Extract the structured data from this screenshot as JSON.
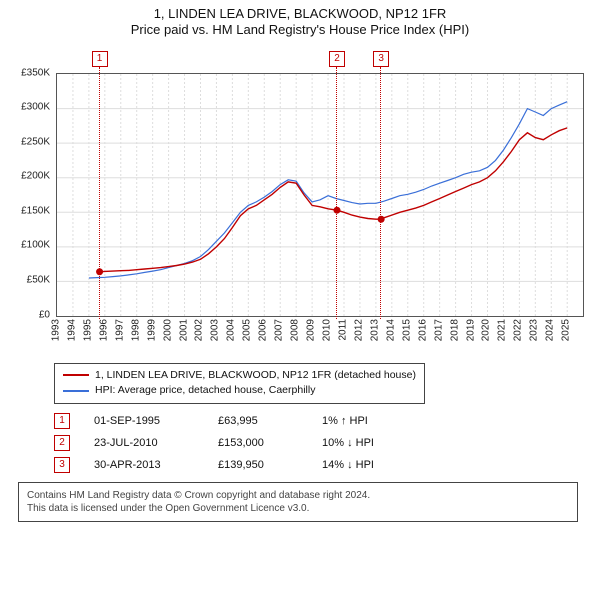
{
  "title_line1": "1, LINDEN LEA DRIVE, BLACKWOOD, NP12 1FR",
  "title_line2": "Price paid vs. HM Land Registry's House Price Index (HPI)",
  "chart": {
    "type": "line",
    "background_color": "#ffffff",
    "grid_color": "#dddddd",
    "border_color": "#555555",
    "xlim": [
      1993,
      2025.99
    ],
    "ylim": [
      0,
      350000
    ],
    "ytick_step": 50000,
    "yticks": [
      "£0",
      "£50K",
      "£100K",
      "£150K",
      "£200K",
      "£250K",
      "£300K",
      "£350K"
    ],
    "xticks": [
      "1993",
      "1994",
      "1995",
      "1996",
      "1997",
      "1998",
      "1999",
      "2000",
      "2001",
      "2002",
      "2003",
      "2004",
      "2005",
      "2006",
      "2007",
      "2008",
      "2009",
      "2010",
      "2011",
      "2012",
      "2013",
      "2014",
      "2015",
      "2016",
      "2017",
      "2018",
      "2019",
      "2020",
      "2021",
      "2022",
      "2023",
      "2024",
      "2025"
    ],
    "label_fontsize": 10,
    "series": [
      {
        "name": "hpi",
        "color": "#3a6fd8",
        "width": 1.2,
        "points": [
          [
            1995.0,
            55000
          ],
          [
            1995.5,
            55500
          ],
          [
            1996.0,
            56000
          ],
          [
            1996.5,
            57000
          ],
          [
            1997.0,
            58000
          ],
          [
            1997.5,
            59500
          ],
          [
            1998.0,
            61000
          ],
          [
            1998.5,
            63000
          ],
          [
            1999.0,
            65000
          ],
          [
            1999.5,
            67000
          ],
          [
            2000.0,
            70000
          ],
          [
            2000.5,
            73000
          ],
          [
            2001.0,
            76000
          ],
          [
            2001.5,
            80000
          ],
          [
            2002.0,
            86000
          ],
          [
            2002.5,
            96000
          ],
          [
            2003.0,
            108000
          ],
          [
            2003.5,
            120000
          ],
          [
            2004.0,
            135000
          ],
          [
            2004.5,
            150000
          ],
          [
            2005.0,
            160000
          ],
          [
            2005.5,
            165000
          ],
          [
            2006.0,
            172000
          ],
          [
            2006.5,
            180000
          ],
          [
            2007.0,
            190000
          ],
          [
            2007.5,
            197000
          ],
          [
            2008.0,
            195000
          ],
          [
            2008.5,
            178000
          ],
          [
            2009.0,
            165000
          ],
          [
            2009.5,
            168000
          ],
          [
            2010.0,
            174000
          ],
          [
            2010.5,
            170000
          ],
          [
            2011.0,
            167000
          ],
          [
            2011.5,
            164000
          ],
          [
            2012.0,
            162000
          ],
          [
            2012.5,
            163000
          ],
          [
            2013.0,
            163000
          ],
          [
            2013.5,
            166000
          ],
          [
            2014.0,
            170000
          ],
          [
            2014.5,
            174000
          ],
          [
            2015.0,
            176000
          ],
          [
            2015.5,
            179000
          ],
          [
            2016.0,
            183000
          ],
          [
            2016.5,
            188000
          ],
          [
            2017.0,
            192000
          ],
          [
            2017.5,
            196000
          ],
          [
            2018.0,
            200000
          ],
          [
            2018.5,
            205000
          ],
          [
            2019.0,
            208000
          ],
          [
            2019.5,
            210000
          ],
          [
            2020.0,
            215000
          ],
          [
            2020.5,
            225000
          ],
          [
            2021.0,
            240000
          ],
          [
            2021.5,
            258000
          ],
          [
            2022.0,
            278000
          ],
          [
            2022.5,
            300000
          ],
          [
            2023.0,
            295000
          ],
          [
            2023.5,
            290000
          ],
          [
            2024.0,
            300000
          ],
          [
            2024.5,
            305000
          ],
          [
            2025.0,
            310000
          ]
        ]
      },
      {
        "name": "price_paid",
        "color": "#c00000",
        "width": 1.4,
        "points": [
          [
            1995.67,
            63995
          ],
          [
            1996.0,
            64500
          ],
          [
            1996.5,
            65000
          ],
          [
            1997.0,
            65500
          ],
          [
            1997.5,
            66000
          ],
          [
            1998.0,
            67000
          ],
          [
            1998.5,
            68000
          ],
          [
            1999.0,
            69000
          ],
          [
            1999.5,
            70000
          ],
          [
            2000.0,
            71500
          ],
          [
            2000.5,
            73000
          ],
          [
            2001.0,
            75000
          ],
          [
            2001.5,
            78000
          ],
          [
            2002.0,
            82000
          ],
          [
            2002.5,
            90000
          ],
          [
            2003.0,
            100000
          ],
          [
            2003.5,
            112000
          ],
          [
            2004.0,
            128000
          ],
          [
            2004.5,
            145000
          ],
          [
            2005.0,
            155000
          ],
          [
            2005.5,
            160000
          ],
          [
            2006.0,
            168000
          ],
          [
            2006.5,
            176000
          ],
          [
            2007.0,
            186000
          ],
          [
            2007.5,
            194000
          ],
          [
            2008.0,
            192000
          ],
          [
            2008.5,
            175000
          ],
          [
            2009.0,
            160000
          ],
          [
            2009.5,
            158000
          ],
          [
            2010.0,
            155000
          ],
          [
            2010.56,
            153000
          ],
          [
            2011.0,
            150000
          ],
          [
            2011.5,
            146000
          ],
          [
            2012.0,
            143000
          ],
          [
            2012.5,
            141000
          ],
          [
            2013.0,
            140000
          ],
          [
            2013.33,
            139950
          ],
          [
            2013.5,
            142000
          ],
          [
            2014.0,
            146000
          ],
          [
            2014.5,
            150000
          ],
          [
            2015.0,
            153000
          ],
          [
            2015.5,
            156000
          ],
          [
            2016.0,
            160000
          ],
          [
            2016.5,
            165000
          ],
          [
            2017.0,
            170000
          ],
          [
            2017.5,
            175000
          ],
          [
            2018.0,
            180000
          ],
          [
            2018.5,
            185000
          ],
          [
            2019.0,
            190000
          ],
          [
            2019.5,
            194000
          ],
          [
            2020.0,
            200000
          ],
          [
            2020.5,
            210000
          ],
          [
            2021.0,
            223000
          ],
          [
            2021.5,
            238000
          ],
          [
            2022.0,
            255000
          ],
          [
            2022.5,
            265000
          ],
          [
            2023.0,
            258000
          ],
          [
            2023.5,
            255000
          ],
          [
            2024.0,
            262000
          ],
          [
            2024.5,
            268000
          ],
          [
            2025.0,
            272000
          ]
        ]
      }
    ],
    "event_markers": [
      {
        "n": "1",
        "x": 1995.67,
        "y": 63995
      },
      {
        "n": "2",
        "x": 2010.56,
        "y": 153000
      },
      {
        "n": "3",
        "x": 2013.33,
        "y": 139950
      }
    ],
    "dot_color": "#c00000",
    "dot_radius": 3.5
  },
  "legend": {
    "entries": [
      {
        "color": "#c00000",
        "label": "1, LINDEN LEA DRIVE, BLACKWOOD, NP12 1FR (detached house)"
      },
      {
        "color": "#3a6fd8",
        "label": "HPI: Average price, detached house, Caerphilly"
      }
    ]
  },
  "events": [
    {
      "n": "1",
      "date": "01-SEP-1995",
      "price": "£63,995",
      "hpi": "1% ↑ HPI"
    },
    {
      "n": "2",
      "date": "23-JUL-2010",
      "price": "£153,000",
      "hpi": "10% ↓ HPI"
    },
    {
      "n": "3",
      "date": "30-APR-2013",
      "price": "£139,950",
      "hpi": "14% ↓ HPI"
    }
  ],
  "footer": {
    "line1": "Contains HM Land Registry data © Crown copyright and database right 2024.",
    "line2": "This data is licensed under the Open Government Licence v3.0."
  }
}
